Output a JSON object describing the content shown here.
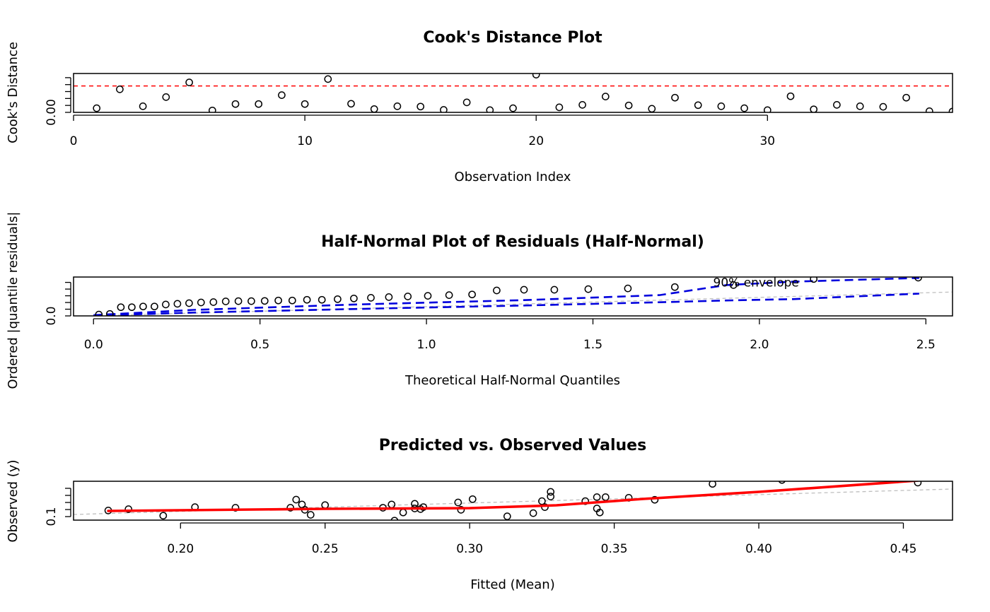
{
  "colors": {
    "points": "#000000",
    "cooks_cutoff": "#ff0000",
    "cooks_flag_label": "#ff0000",
    "envelope": "#0000dd",
    "envelope_label": "#0000dd",
    "reference_line": "#bebebe",
    "smooth_line": "#ff0000"
  },
  "chart_data": [
    {
      "type": "scatter",
      "title": "Cook's Distance Plot",
      "xlabel": "Observation Index",
      "ylabel": "Cook's Distance",
      "xlim": [
        0,
        38
      ],
      "ylim": [
        0,
        0.14
      ],
      "xticks": [
        0,
        10,
        20,
        30
      ],
      "yticks": [
        0,
        0.025,
        0.05,
        0.075,
        0.1,
        0.125
      ],
      "ytick_labels": [
        "0.00",
        "",
        "",
        "",
        "",
        ""
      ],
      "cutoff": 0.095,
      "flag_label": "",
      "x": [
        1,
        2,
        3,
        4,
        5,
        6,
        7,
        8,
        9,
        10,
        11,
        12,
        13,
        14,
        15,
        16,
        17,
        18,
        19,
        20,
        21,
        22,
        23,
        24,
        25,
        26,
        27,
        28,
        29,
        30,
        31,
        32,
        33,
        34,
        35,
        36,
        37,
        38
      ],
      "y": [
        0.015,
        0.083,
        0.022,
        0.055,
        0.108,
        0.007,
        0.03,
        0.03,
        0.062,
        0.03,
        0.12,
        0.031,
        0.012,
        0.022,
        0.021,
        0.009,
        0.036,
        0.008,
        0.015,
        0.136,
        0.018,
        0.027,
        0.057,
        0.025,
        0.013,
        0.053,
        0.026,
        0.022,
        0.015,
        0.008,
        0.058,
        0.011,
        0.027,
        0.022,
        0.02,
        0.053,
        0.004,
        0.003
      ]
    },
    {
      "type": "scatter",
      "title": "Half-Normal Plot of Residuals (Half-Normal)",
      "xlabel": "Theoretical Half-Normal Quantiles",
      "ylabel": "Ordered |quantile residuals|",
      "xlim": [
        -0.06,
        2.58
      ],
      "ylim": [
        0,
        2.9
      ],
      "xticks": [
        0,
        0.5,
        1,
        1.5,
        2,
        2.5
      ],
      "xtick_labels": [
        "0.0",
        "0.5",
        "1.0",
        "1.5",
        "2.0",
        "2.5"
      ],
      "yticks": [
        0,
        0.5,
        1,
        1.5,
        2,
        2.5
      ],
      "ytick_labels": [
        "0.0",
        "",
        "",
        "",
        "",
        ""
      ],
      "envelope_label": "90% envelope",
      "envelope_label_at": [
        1.99,
        2.5
      ],
      "x": [
        0.016,
        0.049,
        0.082,
        0.115,
        0.149,
        0.183,
        0.217,
        0.252,
        0.287,
        0.323,
        0.36,
        0.397,
        0.435,
        0.474,
        0.514,
        0.555,
        0.597,
        0.641,
        0.686,
        0.733,
        0.782,
        0.833,
        0.887,
        0.944,
        1.004,
        1.068,
        1.137,
        1.211,
        1.293,
        1.384,
        1.486,
        1.605,
        1.746,
        1.922,
        2.163,
        2.477
      ],
      "y": [
        0.1,
        0.15,
        0.65,
        0.65,
        0.7,
        0.7,
        0.85,
        0.9,
        0.95,
        1.0,
        1.03,
        1.08,
        1.1,
        1.1,
        1.12,
        1.15,
        1.15,
        1.2,
        1.2,
        1.25,
        1.3,
        1.35,
        1.4,
        1.45,
        1.5,
        1.55,
        1.6,
        1.9,
        1.95,
        1.95,
        2.0,
        2.05,
        2.15,
        2.3,
        2.75,
        2.85
      ],
      "envelope_upper": {
        "x": [
          0,
          0.3,
          0.8,
          1.3,
          1.7,
          1.9,
          2.1,
          2.48
        ],
        "y": [
          0.06,
          0.45,
          0.86,
          1.18,
          1.55,
          2.3,
          2.55,
          2.83
        ]
      },
      "envelope_lower": {
        "x": [
          0,
          0.3,
          0.8,
          1.3,
          1.7,
          1.9,
          2.1,
          2.48
        ],
        "y": [
          0.02,
          0.25,
          0.52,
          0.78,
          1.02,
          1.15,
          1.25,
          1.66
        ]
      },
      "reference_line": {
        "x": [
          -0.06,
          2.58
        ],
        "y": [
          -0.04,
          1.78
        ]
      }
    },
    {
      "type": "scatter",
      "title": "Predicted vs. Observed Values",
      "xlabel": "Fitted (Mean)",
      "ylabel": "Observed (y)",
      "xlim": [
        0.163,
        0.467
      ],
      "ylim": [
        0.05,
        0.6
      ],
      "xticks": [
        0.2,
        0.25,
        0.3,
        0.35,
        0.4,
        0.45
      ],
      "xtick_labels": [
        "0.20",
        "0.25",
        "0.30",
        "0.35",
        "0.40",
        "0.45"
      ],
      "yticks": [
        0.1,
        0.2,
        0.3,
        0.4,
        0.5
      ],
      "ytick_labels": [
        "0.1",
        "",
        "",
        "",
        ""
      ],
      "x": [
        0.175,
        0.182,
        0.194,
        0.205,
        0.219,
        0.238,
        0.24,
        0.242,
        0.243,
        0.245,
        0.25,
        0.27,
        0.273,
        0.274,
        0.277,
        0.281,
        0.281,
        0.283,
        0.284,
        0.296,
        0.297,
        0.301,
        0.313,
        0.322,
        0.325,
        0.326,
        0.328,
        0.328,
        0.34,
        0.344,
        0.345,
        0.344,
        0.347,
        0.355,
        0.364,
        0.384,
        0.408,
        0.455
      ],
      "y": [
        0.186,
        0.205,
        0.113,
        0.234,
        0.225,
        0.225,
        0.34,
        0.272,
        0.196,
        0.125,
        0.263,
        0.225,
        0.272,
        0.043,
        0.158,
        0.281,
        0.215,
        0.206,
        0.234,
        0.3,
        0.196,
        0.347,
        0.104,
        0.149,
        0.319,
        0.234,
        0.45,
        0.384,
        0.319,
        0.215,
        0.158,
        0.375,
        0.375,
        0.366,
        0.338,
        0.563,
        0.618,
        0.581
      ],
      "smooth_line": {
        "x": [
          0.175,
          0.2,
          0.25,
          0.3,
          0.33,
          0.36,
          0.4,
          0.455
        ],
        "y": [
          0.18,
          0.19,
          0.21,
          0.22,
          0.26,
          0.35,
          0.45,
          0.61
        ]
      },
      "reference_line": {
        "x": [
          0.163,
          0.467
        ],
        "y": [
          0.13,
          0.49
        ]
      }
    }
  ]
}
